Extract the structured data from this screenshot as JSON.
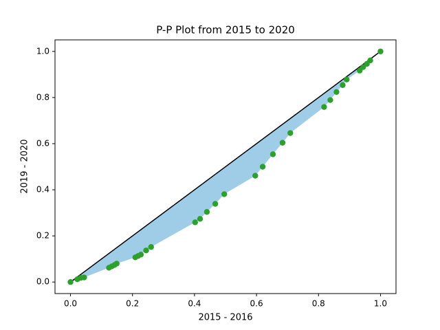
{
  "chart_data": {
    "type": "scatter",
    "title": "P-P Plot from 2015 to 2020",
    "x_label": "2015 - 2016",
    "y_label": "2019 - 2020",
    "x": [
      0,
      0.022,
      0.033,
      0.044,
      0.124,
      0.133,
      0.142,
      0.149,
      0.209,
      0.218,
      0.227,
      0.244,
      0.26,
      0.402,
      0.418,
      0.44,
      0.467,
      0.496,
      0.596,
      0.62,
      0.653,
      0.684,
      0.709,
      0.818,
      0.838,
      0.858,
      0.878,
      0.891,
      0.933,
      0.944,
      0.956,
      0.967,
      1
    ],
    "y": [
      0,
      0.012,
      0.018,
      0.02,
      0.062,
      0.068,
      0.074,
      0.08,
      0.107,
      0.113,
      0.119,
      0.137,
      0.152,
      0.259,
      0.274,
      0.304,
      0.339,
      0.381,
      0.461,
      0.5,
      0.554,
      0.604,
      0.646,
      0.759,
      0.789,
      0.824,
      0.854,
      0.878,
      0.917,
      0.932,
      0.946,
      0.961,
      1
    ],
    "color": "#2ca02c",
    "fill_color": "#9fcde8",
    "reference_line": {
      "x": [
        0,
        1
      ],
      "y": [
        0,
        1
      ],
      "color": "#000000"
    },
    "xlim": [
      -0.05,
      1.05
    ],
    "ylim": [
      -0.05,
      1.05
    ],
    "xticks": [
      {
        "value": 0,
        "label": "0.0"
      },
      0.2,
      0.4,
      0.6,
      0.8,
      {
        "value": 1,
        "label": "1.0"
      }
    ],
    "yticks": [
      {
        "value": 0,
        "label": "0.0"
      },
      0.2,
      0.4,
      0.6,
      0.8,
      {
        "value": 1,
        "label": "1.0"
      }
    ]
  }
}
